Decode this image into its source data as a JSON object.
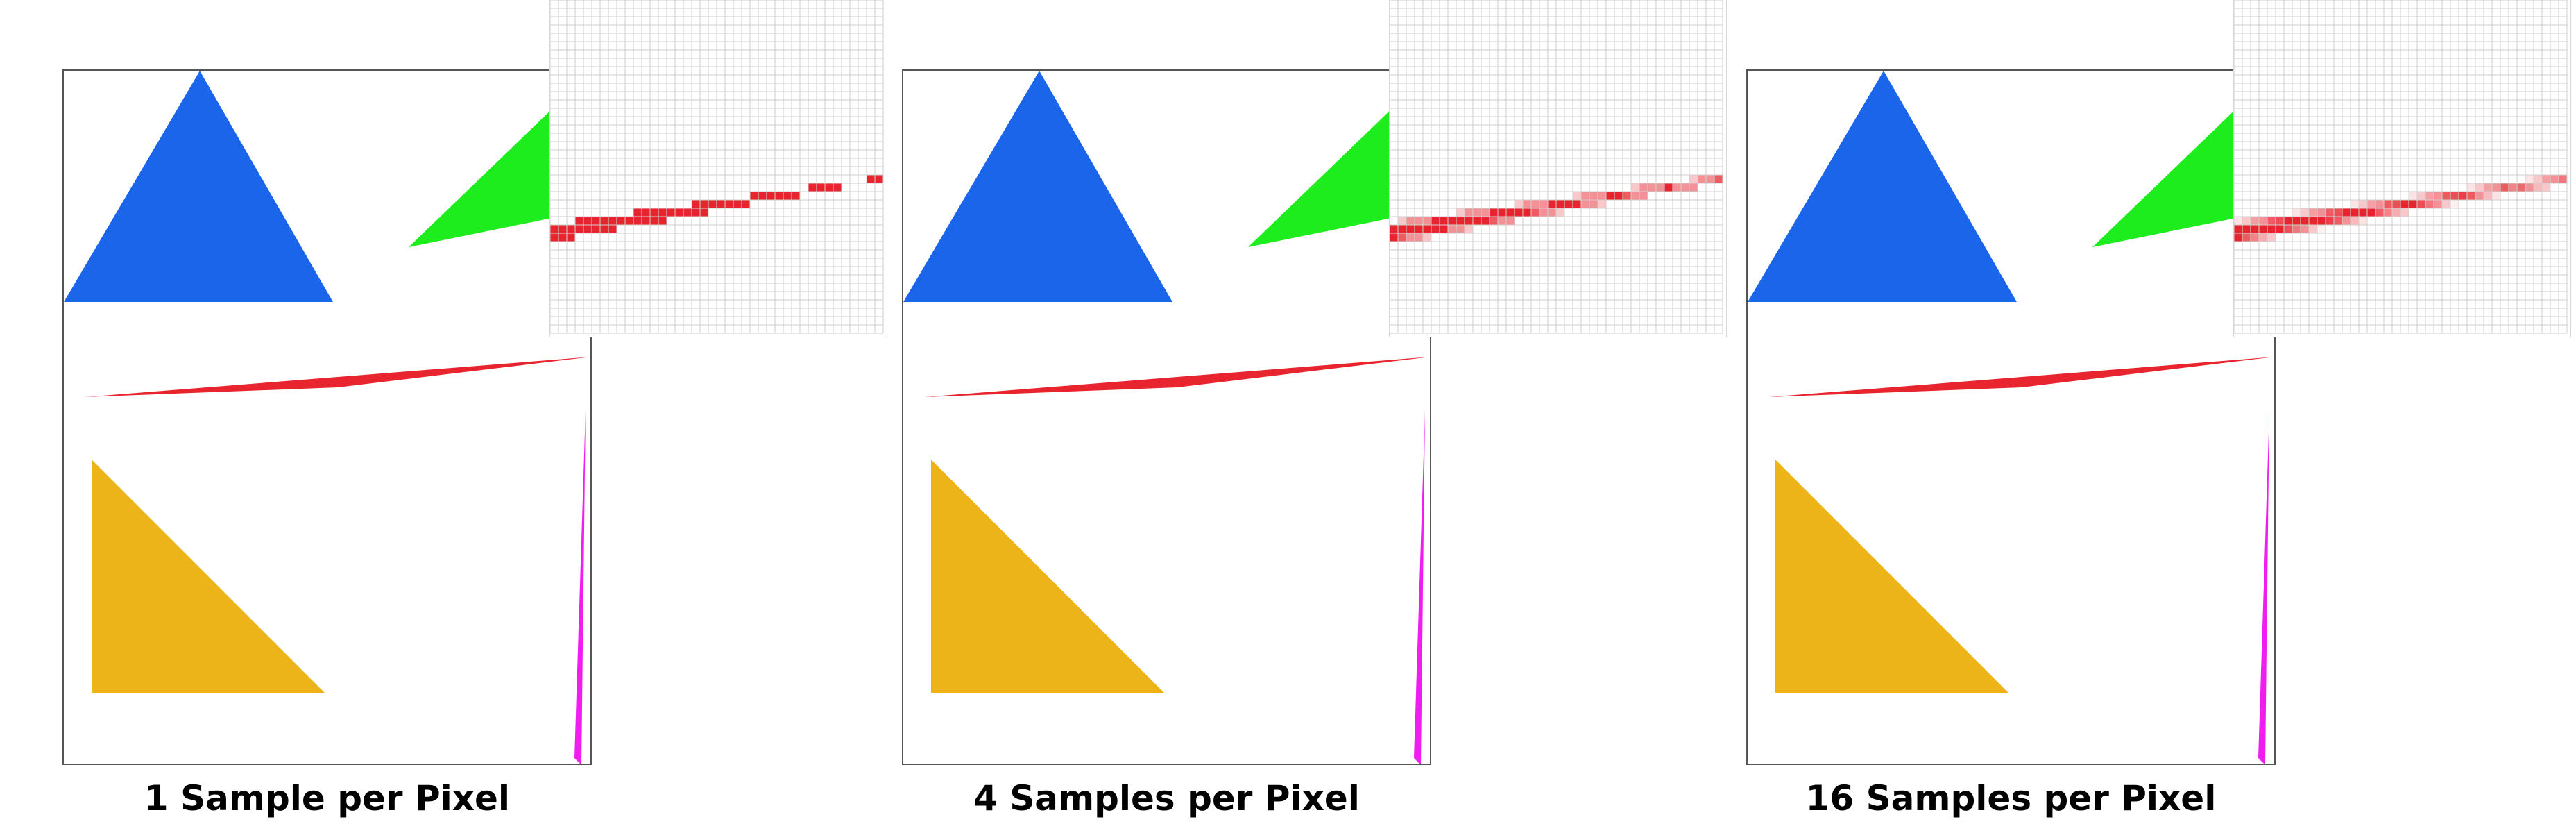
{
  "panels": [
    {
      "caption": "1 Sample per Pixel",
      "samples": 1
    },
    {
      "caption": "4 Samples per Pixel",
      "samples": 4
    },
    {
      "caption": "16 Samples per Pixel",
      "samples": 16
    }
  ],
  "colors": {
    "blue": "#1b65ea",
    "green": "#1ded1d",
    "red": "#e8252e",
    "yellow": "#edb41a",
    "magenta": "#ef1def",
    "grid": "#cfcfcf",
    "frame": "#555555"
  }
}
